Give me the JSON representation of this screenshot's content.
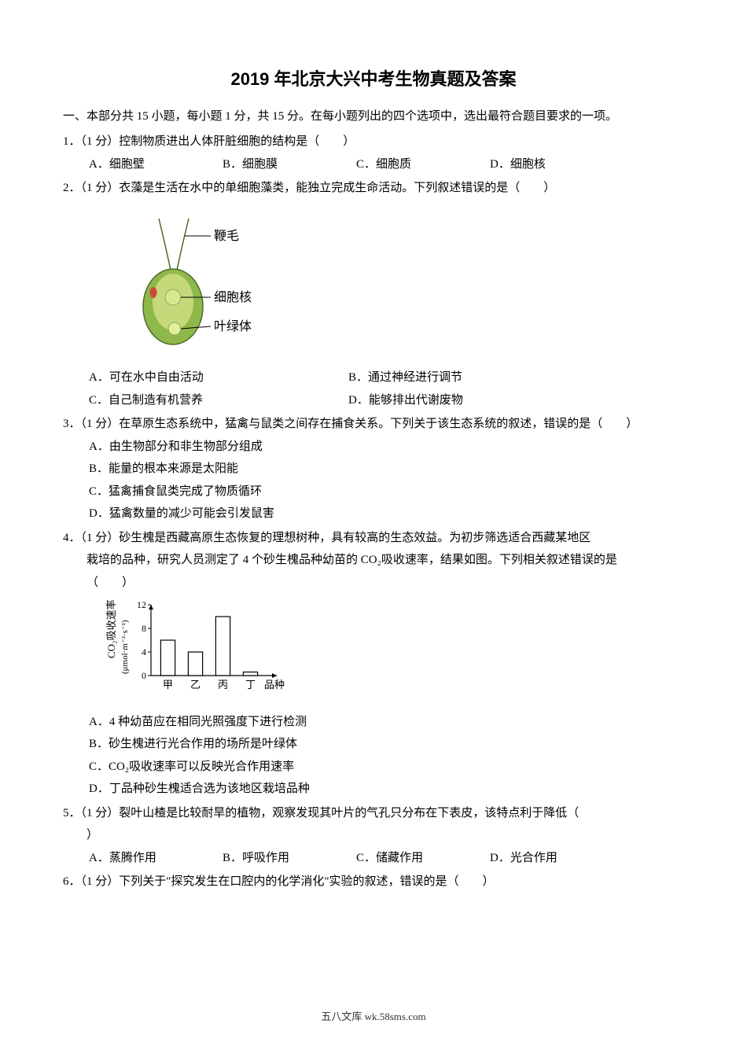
{
  "title": "2019 年北京大兴中考生物真题及答案",
  "section_intro": "一、本部分共 15 小题，每小题 1 分，共 15 分。在每小题列出的四个选项中，选出最符合题目要求的一项。",
  "q1": {
    "stem": "1．（1 分）控制物质进出人体肝脏细胞的结构是（　　）",
    "a": "A．细胞壁",
    "b": "B．细胞膜",
    "c": "C．细胞质",
    "d": "D．细胞核"
  },
  "q2": {
    "stem": "2．（1 分）衣藻是生活在水中的单细胞藻类，能独立完成生命活动。下列叙述错误的是（　　）",
    "diagram": {
      "labels": {
        "flagellum": "鞭毛",
        "nucleus": "细胞核",
        "chloroplast": "叶绿体"
      },
      "body_fill": "#8fb84a",
      "body_stroke": "#4a6b2a",
      "inner_fill": "#c5d97a",
      "eyespot_color": "#c94a3d",
      "flagellum_color": "#4a6b2a",
      "nucleus_color": "#d4e88f"
    },
    "a": "A．可在水中自由活动",
    "b": "B．通过神经进行调节",
    "c": "C．自己制造有机营养",
    "d": "D．能够排出代谢废物"
  },
  "q3": {
    "stem": "3．（1 分）在草原生态系统中，猛禽与鼠类之间存在捕食关系。下列关于该生态系统的叙述，错误的是（　　）",
    "a": "A．由生物部分和非生物部分组成",
    "b": "B．能量的根本来源是太阳能",
    "c": "C．猛禽捕食鼠类完成了物质循环",
    "d": "D．猛禽数量的减少可能会引发鼠害"
  },
  "q4": {
    "stem1": "4．（1 分）砂生槐是西藏高原生态恢复的理想树种，具有较高的生态效益。为初步筛选适合西藏某地区",
    "stem2": "栽培的品种，研究人员测定了 4 个砂生槐品种幼苗的 CO₂吸收速率，结果如图。下列相关叙述错误的是",
    "stem3": "（　　）",
    "chart": {
      "type": "bar",
      "categories": [
        "甲",
        "乙",
        "丙",
        "丁"
      ],
      "values": [
        6,
        4,
        10,
        0.6
      ],
      "ylim": [
        0,
        12
      ],
      "yticks": [
        0,
        4,
        8,
        12
      ],
      "y_label_top": "CO₂吸收速率",
      "y_label_unit": "(μmol·m⁻²·s⁻¹)",
      "x_label_tail": "品种",
      "bar_fill": "#ffffff",
      "bar_stroke": "#000000",
      "axis_color": "#000000",
      "label_fontsize": 13,
      "bar_width": 0.52
    },
    "a": "A．4 种幼苗应在相同光照强度下进行检测",
    "b": "B．砂生槐进行光合作用的场所是叶绿体",
    "c": "C．CO₂吸收速率可以反映光合作用速率",
    "d": "D．丁品种砂生槐适合选为该地区栽培品种"
  },
  "q5": {
    "stem1": "5．（1 分）裂叶山楂是比较耐旱的植物，观察发现其叶片的气孔只分布在下表皮，该特点利于降低（　",
    "stem2": "）",
    "a": "A．蒸腾作用",
    "b": "B．呼吸作用",
    "c": "C．储藏作用",
    "d": "D．光合作用"
  },
  "q6": {
    "stem": "6．（1 分）下列关于\"探究发生在口腔内的化学消化\"实验的叙述，错误的是（　　）"
  },
  "footer": "五八文库 wk.58sms.com"
}
